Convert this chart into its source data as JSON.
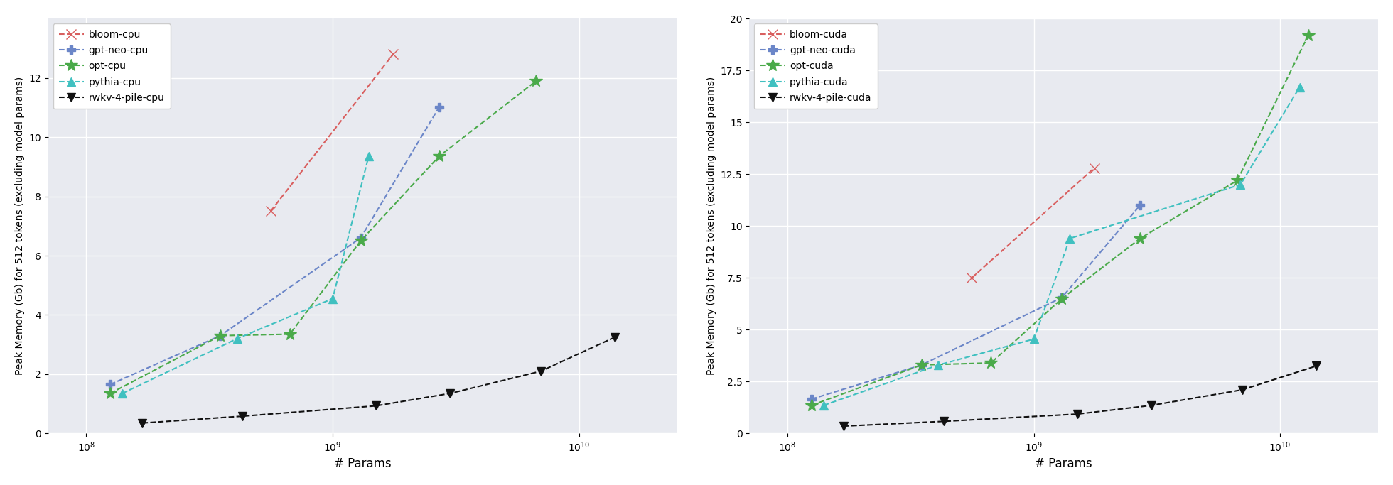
{
  "cpu": {
    "bloom": {
      "x": [
        560000000.0,
        1760000000.0
      ],
      "y": [
        7.5,
        12.8
      ]
    },
    "gpt_neo": {
      "x": [
        125000000.0,
        350000000.0,
        1300000000.0,
        2700000000.0
      ],
      "y": [
        1.65,
        3.3,
        6.6,
        11.0
      ]
    },
    "opt": {
      "x": [
        125000000.0,
        350000000.0,
        670000000.0,
        1300000000.0,
        2700000000.0,
        6700000000.0
      ],
      "y": [
        1.35,
        3.3,
        3.35,
        6.5,
        9.35,
        11.9
      ]
    },
    "pythia": {
      "x": [
        140000000.0,
        410000000.0,
        1000000000.0,
        1400000000.0
      ],
      "y": [
        1.35,
        3.2,
        4.55,
        9.35
      ]
    },
    "rwkv": {
      "x": [
        169000000.0,
        430000000.0,
        1500000000.0,
        3000000000.0,
        7000000000.0,
        14000000000.0
      ],
      "y": [
        0.35,
        0.58,
        0.93,
        1.35,
        2.1,
        3.25
      ]
    }
  },
  "cuda": {
    "bloom": {
      "x": [
        560000000.0,
        1760000000.0
      ],
      "y": [
        7.5,
        12.8
      ]
    },
    "gpt_neo": {
      "x": [
        125000000.0,
        350000000.0,
        1300000000.0,
        2700000000.0
      ],
      "y": [
        1.65,
        3.3,
        6.55,
        11.0
      ]
    },
    "opt": {
      "x": [
        125000000.0,
        350000000.0,
        670000000.0,
        1300000000.0,
        2700000000.0,
        6700000000.0,
        13000000000.0
      ],
      "y": [
        1.35,
        3.3,
        3.4,
        6.5,
        9.4,
        12.2,
        19.2
      ]
    },
    "pythia": {
      "x": [
        140000000.0,
        410000000.0,
        1000000000.0,
        1400000000.0,
        6900000000.0,
        12000000000.0
      ],
      "y": [
        1.35,
        3.3,
        4.55,
        9.4,
        12.0,
        16.7
      ]
    },
    "rwkv": {
      "x": [
        169000000.0,
        430000000.0,
        1500000000.0,
        3000000000.0,
        7000000000.0,
        14000000000.0
      ],
      "y": [
        0.35,
        0.58,
        0.93,
        1.35,
        2.1,
        3.25
      ]
    }
  },
  "colors": {
    "bloom": "#d95f5f",
    "gpt_neo": "#6b86c8",
    "opt": "#4aaa4a",
    "pythia": "#40c0c0",
    "rwkv": "#111111"
  },
  "markers": {
    "bloom": "x",
    "gpt_neo": "P",
    "opt": "*",
    "pythia": "^",
    "rwkv": "v"
  },
  "marker_sizes": {
    "bloom": 10,
    "gpt_neo": 9,
    "opt": 13,
    "pythia": 9,
    "rwkv": 9
  },
  "bg_color": "#e8eaf0",
  "cpu_ylabel": "Peak Memory (Gb) for 512 tokens (excluding model params)",
  "cuda_ylabel": "Peak Memory (Gb) for 512 tokens (excluding model params)",
  "xlabel": "# Params",
  "cpu_ylim": [
    0,
    14
  ],
  "cuda_ylim": [
    0,
    20
  ],
  "cpu_yticks": [
    0,
    2,
    4,
    6,
    8,
    10,
    12
  ],
  "cuda_yticks": [
    0.0,
    2.5,
    5.0,
    7.5,
    10.0,
    12.5,
    15.0,
    17.5,
    20.0
  ],
  "xlim": [
    70000000.0,
    25000000000.0
  ]
}
